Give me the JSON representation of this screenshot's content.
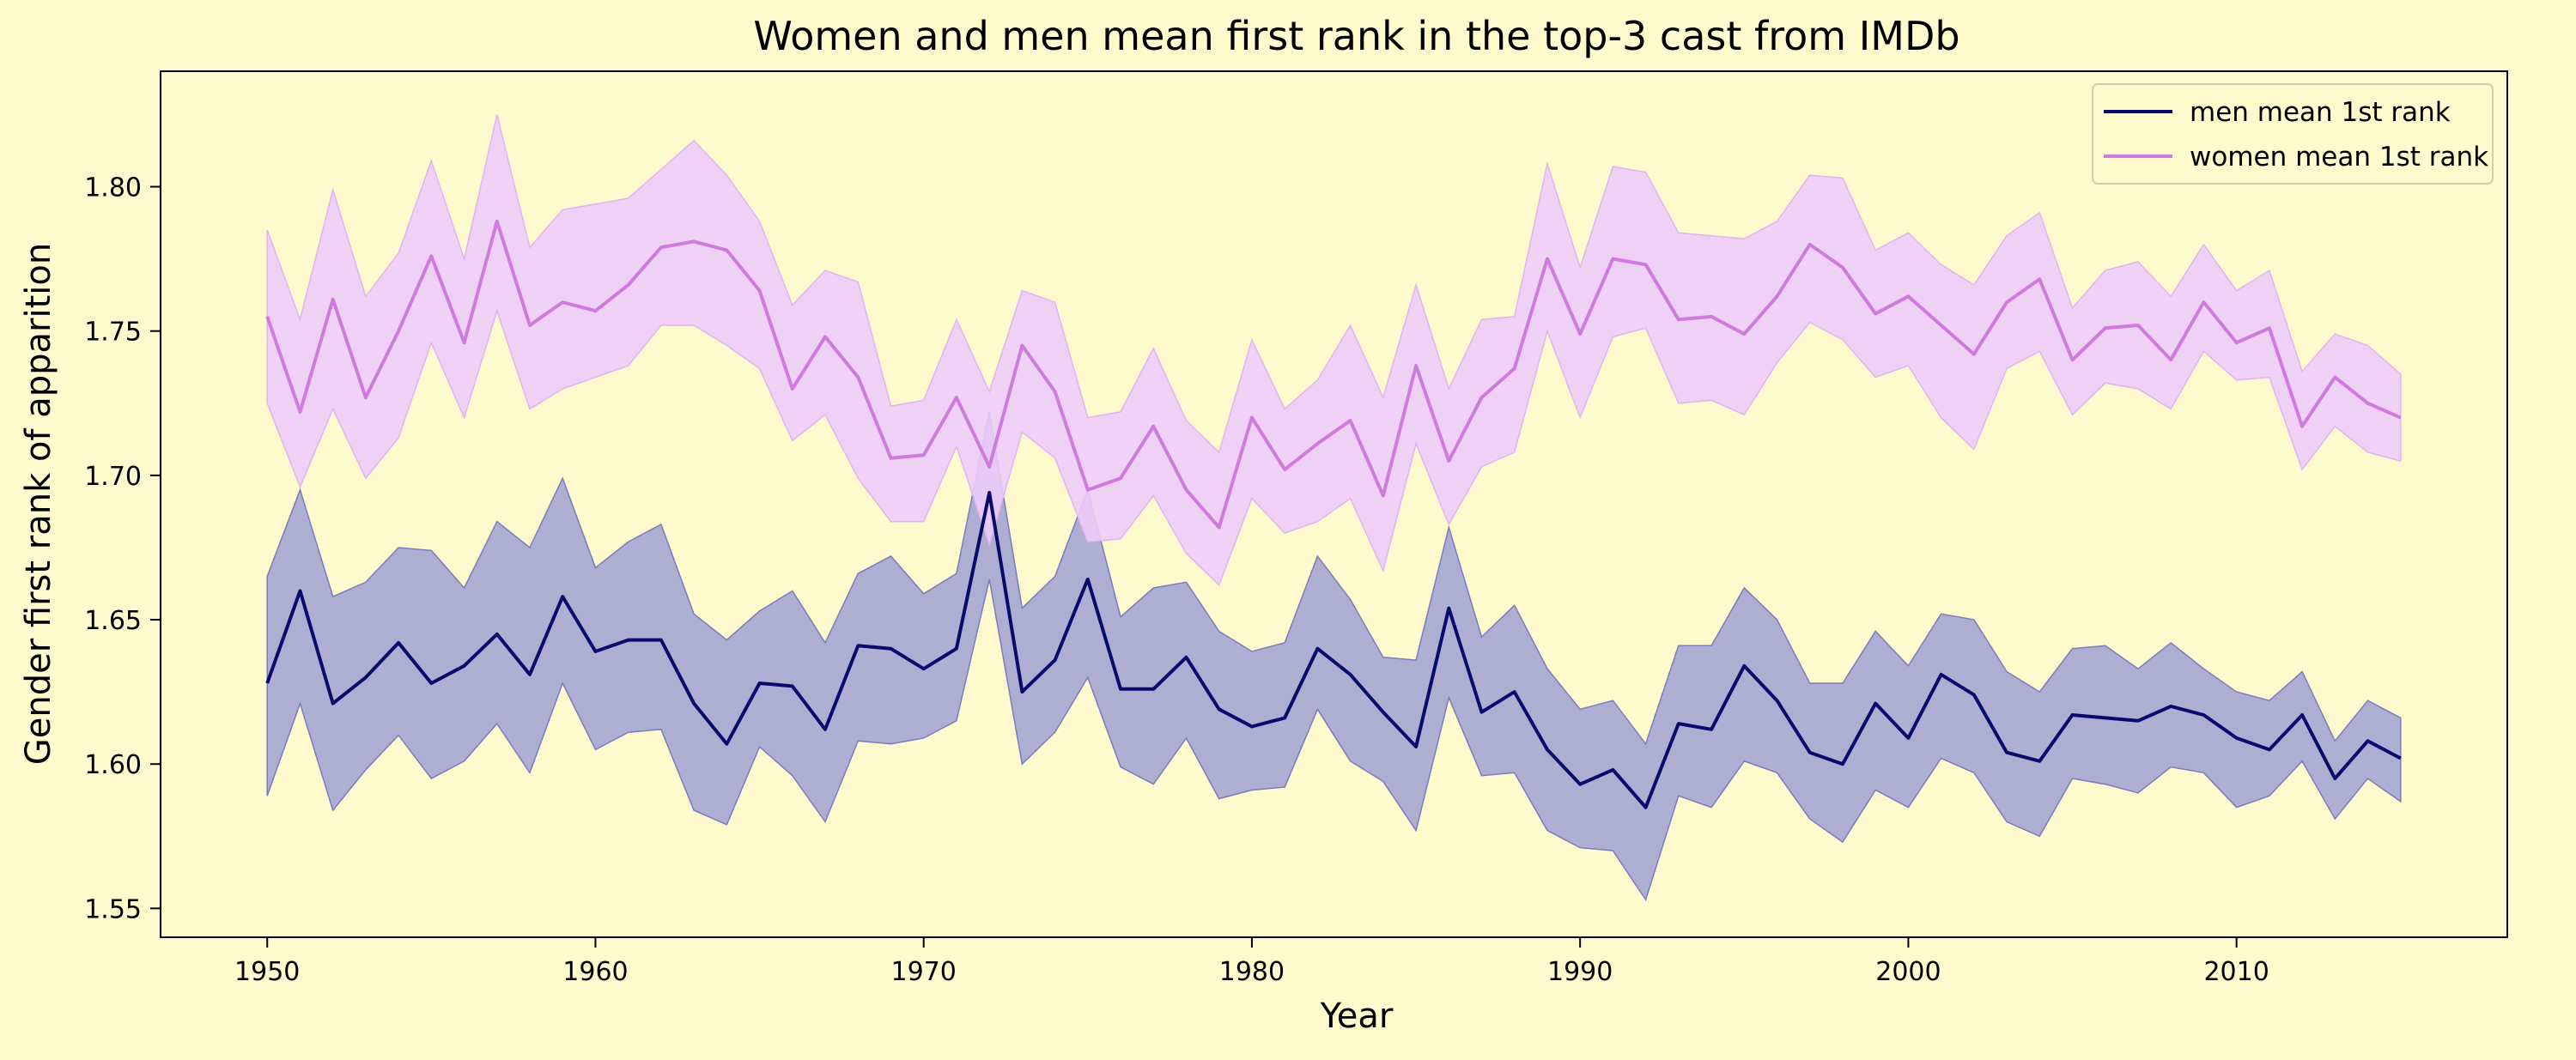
{
  "colors": {
    "background": "#fffacd",
    "men_line": "#0a0a6e",
    "men_band": "#9fa0d1",
    "men_band_edge": "#7b7cbd",
    "women_line": "#d07ae0",
    "women_band": "#ecccf8",
    "women_band_edge": "#e2b3f2"
  },
  "chart_data": {
    "type": "line",
    "title": "Women and men mean first rank in the top-3 cast from IMDb",
    "xlabel": "Year",
    "ylabel": "Gender first rank of apparition",
    "xlim": [
      1946.75,
      2018.25
    ],
    "ylim": [
      1.54,
      1.84
    ],
    "xticks": [
      1950,
      1960,
      1970,
      1980,
      1990,
      2000,
      2010
    ],
    "yticks": [
      "1.55",
      "1.60",
      "1.65",
      "1.70",
      "1.75",
      "1.80"
    ],
    "grid": false,
    "legend_position": "top-right",
    "x": [
      1950,
      1951,
      1952,
      1953,
      1954,
      1955,
      1956,
      1957,
      1958,
      1959,
      1960,
      1961,
      1962,
      1963,
      1964,
      1965,
      1966,
      1967,
      1968,
      1969,
      1970,
      1971,
      1972,
      1973,
      1974,
      1975,
      1976,
      1977,
      1978,
      1979,
      1980,
      1981,
      1982,
      1983,
      1984,
      1985,
      1986,
      1987,
      1988,
      1989,
      1990,
      1991,
      1992,
      1993,
      1994,
      1995,
      1996,
      1997,
      1998,
      1999,
      2000,
      2001,
      2002,
      2003,
      2004,
      2005,
      2006,
      2007,
      2008,
      2009,
      2010,
      2011,
      2012,
      2013,
      2014,
      2015
    ],
    "series": [
      {
        "name": "men mean 1st rank",
        "values": [
          1.628,
          1.66,
          1.621,
          1.63,
          1.642,
          1.628,
          1.634,
          1.645,
          1.631,
          1.658,
          1.639,
          1.643,
          1.643,
          1.621,
          1.607,
          1.628,
          1.627,
          1.612,
          1.641,
          1.64,
          1.633,
          1.64,
          1.694,
          1.625,
          1.636,
          1.664,
          1.626,
          1.626,
          1.637,
          1.619,
          1.613,
          1.616,
          1.64,
          1.631,
          1.618,
          1.606,
          1.654,
          1.618,
          1.625,
          1.605,
          1.593,
          1.598,
          1.585,
          1.614,
          1.612,
          1.634,
          1.622,
          1.604,
          1.6,
          1.621,
          1.609,
          1.631,
          1.624,
          1.604,
          1.601,
          1.617,
          1.616,
          1.615,
          1.62,
          1.617,
          1.609,
          1.605,
          1.617,
          1.595,
          1.608,
          1.602
        ],
        "lower": [
          1.589,
          1.621,
          1.584,
          1.598,
          1.61,
          1.595,
          1.601,
          1.614,
          1.597,
          1.628,
          1.605,
          1.611,
          1.612,
          1.584,
          1.579,
          1.606,
          1.596,
          1.58,
          1.608,
          1.607,
          1.609,
          1.615,
          1.664,
          1.6,
          1.611,
          1.63,
          1.599,
          1.593,
          1.609,
          1.588,
          1.591,
          1.592,
          1.619,
          1.601,
          1.594,
          1.577,
          1.623,
          1.596,
          1.597,
          1.577,
          1.571,
          1.57,
          1.553,
          1.589,
          1.585,
          1.601,
          1.597,
          1.581,
          1.573,
          1.591,
          1.585,
          1.602,
          1.597,
          1.58,
          1.575,
          1.595,
          1.593,
          1.59,
          1.599,
          1.597,
          1.585,
          1.589,
          1.601,
          1.581,
          1.595,
          1.587
        ],
        "upper": [
          1.665,
          1.695,
          1.658,
          1.663,
          1.675,
          1.674,
          1.661,
          1.684,
          1.675,
          1.699,
          1.668,
          1.677,
          1.683,
          1.652,
          1.643,
          1.653,
          1.66,
          1.642,
          1.666,
          1.672,
          1.659,
          1.666,
          1.722,
          1.654,
          1.665,
          1.695,
          1.651,
          1.661,
          1.663,
          1.646,
          1.639,
          1.642,
          1.672,
          1.657,
          1.637,
          1.636,
          1.682,
          1.644,
          1.655,
          1.633,
          1.619,
          1.622,
          1.607,
          1.641,
          1.641,
          1.661,
          1.65,
          1.628,
          1.628,
          1.646,
          1.634,
          1.652,
          1.65,
          1.632,
          1.625,
          1.64,
          1.641,
          1.633,
          1.642,
          1.633,
          1.625,
          1.622,
          1.632,
          1.608,
          1.622,
          1.616
        ]
      },
      {
        "name": "women mean 1st rank",
        "values": [
          1.755,
          1.722,
          1.761,
          1.727,
          1.75,
          1.776,
          1.746,
          1.788,
          1.752,
          1.76,
          1.757,
          1.766,
          1.779,
          1.781,
          1.778,
          1.764,
          1.73,
          1.748,
          1.734,
          1.706,
          1.707,
          1.727,
          1.703,
          1.745,
          1.729,
          1.695,
          1.699,
          1.717,
          1.695,
          1.682,
          1.72,
          1.702,
          1.711,
          1.719,
          1.693,
          1.738,
          1.705,
          1.727,
          1.737,
          1.775,
          1.749,
          1.775,
          1.773,
          1.754,
          1.755,
          1.749,
          1.762,
          1.78,
          1.772,
          1.756,
          1.762,
          1.752,
          1.742,
          1.76,
          1.768,
          1.74,
          1.751,
          1.752,
          1.74,
          1.76,
          1.746,
          1.751,
          1.717,
          1.734,
          1.725,
          1.72
        ],
        "lower": [
          1.725,
          1.696,
          1.723,
          1.699,
          1.713,
          1.746,
          1.72,
          1.757,
          1.723,
          1.73,
          1.734,
          1.738,
          1.752,
          1.752,
          1.745,
          1.737,
          1.712,
          1.721,
          1.699,
          1.684,
          1.684,
          1.71,
          1.676,
          1.715,
          1.706,
          1.677,
          1.678,
          1.693,
          1.673,
          1.662,
          1.692,
          1.68,
          1.684,
          1.692,
          1.667,
          1.711,
          1.683,
          1.703,
          1.708,
          1.75,
          1.72,
          1.748,
          1.751,
          1.725,
          1.726,
          1.721,
          1.739,
          1.753,
          1.747,
          1.734,
          1.738,
          1.72,
          1.709,
          1.737,
          1.743,
          1.721,
          1.732,
          1.73,
          1.723,
          1.743,
          1.733,
          1.734,
          1.702,
          1.717,
          1.708,
          1.705
        ],
        "upper": [
          1.785,
          1.754,
          1.799,
          1.762,
          1.777,
          1.809,
          1.775,
          1.825,
          1.779,
          1.792,
          1.794,
          1.796,
          1.806,
          1.816,
          1.804,
          1.788,
          1.759,
          1.771,
          1.767,
          1.724,
          1.726,
          1.754,
          1.729,
          1.764,
          1.76,
          1.72,
          1.722,
          1.744,
          1.719,
          1.708,
          1.747,
          1.723,
          1.733,
          1.752,
          1.727,
          1.766,
          1.73,
          1.754,
          1.755,
          1.808,
          1.772,
          1.807,
          1.805,
          1.784,
          1.783,
          1.782,
          1.788,
          1.804,
          1.803,
          1.778,
          1.784,
          1.773,
          1.766,
          1.783,
          1.791,
          1.758,
          1.771,
          1.774,
          1.762,
          1.78,
          1.764,
          1.771,
          1.736,
          1.749,
          1.745,
          1.735
        ]
      }
    ]
  }
}
